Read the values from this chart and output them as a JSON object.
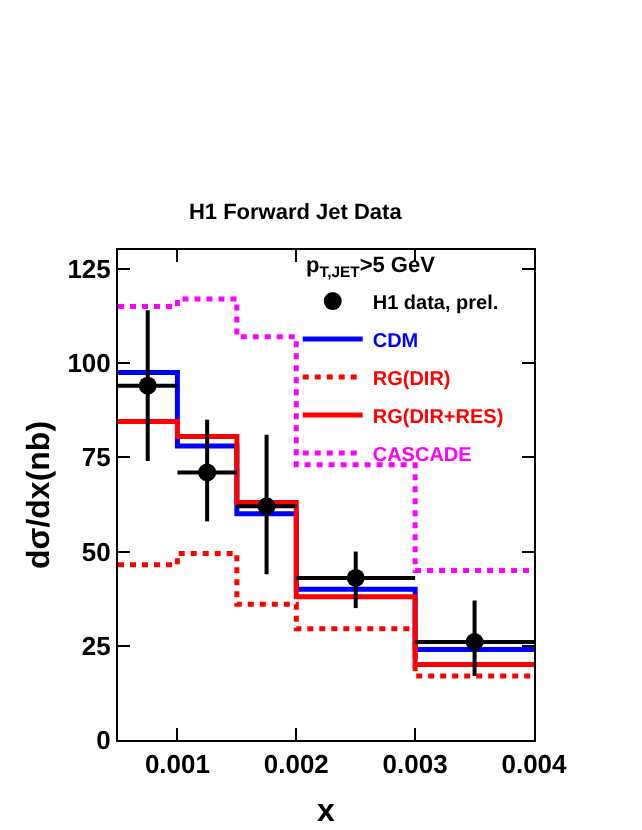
{
  "chart_data": {
    "type": "step",
    "title": "H1 Forward Jet Data",
    "xlabel": "x",
    "ylabel": "dσ/dx(nb)",
    "annotations": [
      "p$_{T,JET}$>5 GeV"
    ],
    "xlim": [
      0.0005,
      0.004
    ],
    "xticks": [
      0.001,
      0.002,
      0.003,
      0.004
    ],
    "ylim": [
      0,
      130
    ],
    "yticks": [
      0,
      25,
      50,
      75,
      100,
      125
    ],
    "grid": false,
    "legend": "top right",
    "series": [
      {
        "name": "H1 data, prel.",
        "type": "scatter",
        "marker": "circle",
        "color": "#000000",
        "x": [
          0.00075,
          0.00125,
          0.00175,
          0.0025,
          0.0035
        ],
        "values": [
          94,
          71,
          62,
          43,
          26
        ],
        "errors": [
          [
            74,
            114
          ],
          [
            58,
            85
          ],
          [
            44,
            81
          ],
          [
            35,
            50
          ],
          [
            17,
            37
          ]
        ],
        "xerrors": [
          0.00025,
          0.00025,
          0.00025,
          0.0005,
          0.0005
        ]
      },
      {
        "name": "CDM",
        "color": "#0000ff",
        "line_style": "solid",
        "x": [
          0.0005,
          0.001,
          0.0015,
          0.002,
          0.003,
          0.004
        ],
        "values": [
          97.5,
          78,
          60,
          40,
          24,
          24
        ]
      },
      {
        "name": "RG(DIR)",
        "color": "#ff0000",
        "line_style": "dotted",
        "x": [
          0.0005,
          0.001,
          0.0015,
          0.002,
          0.003,
          0.004
        ],
        "values": [
          46.5,
          49.5,
          36,
          29.5,
          17,
          17
        ]
      },
      {
        "name": "RG(DIR+RES)",
        "color": "#ff0000",
        "line_style": "solid",
        "x": [
          0.0005,
          0.001,
          0.0015,
          0.002,
          0.003,
          0.004
        ],
        "values": [
          84.5,
          80.5,
          63,
          38,
          20,
          20
        ]
      },
      {
        "name": "CASCADE",
        "color": "#ff00ff",
        "line_style": "dotted",
        "x": [
          0.0005,
          0.001,
          0.0015,
          0.002,
          0.003,
          0.004
        ],
        "values": [
          115,
          117,
          107,
          73,
          45,
          45
        ]
      }
    ]
  }
}
